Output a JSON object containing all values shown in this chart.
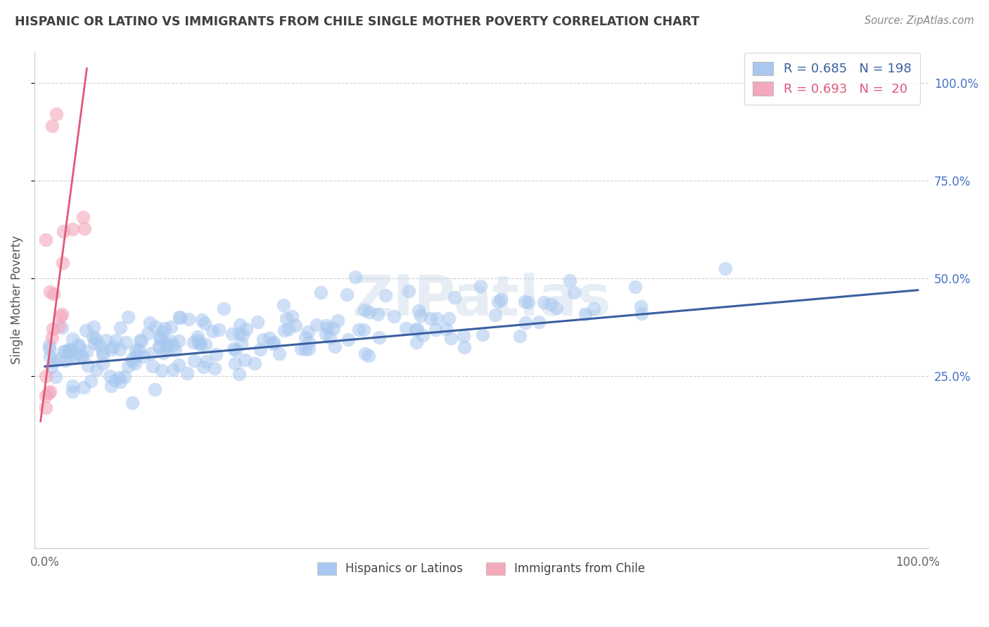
{
  "title": "HISPANIC OR LATINO VS IMMIGRANTS FROM CHILE SINGLE MOTHER POVERTY CORRELATION CHART",
  "source": "Source: ZipAtlas.com",
  "ylabel": "Single Mother Poverty",
  "x_tick_labels": [
    "0.0%",
    "",
    "",
    "",
    "100.0%"
  ],
  "y_tick_positions_right": [
    0.25,
    0.5,
    0.75,
    1.0
  ],
  "y_tick_labels_right": [
    "25.0%",
    "50.0%",
    "75.0%",
    "100.0%"
  ],
  "blue_R": 0.685,
  "blue_N": 198,
  "pink_R": 0.693,
  "pink_N": 20,
  "blue_color": "#A8C8F0",
  "pink_color": "#F4A8BC",
  "blue_line_color": "#3A5FA0",
  "pink_line_color": "#E05878",
  "legend_label_blue": "Hispanics or Latinos",
  "legend_label_pink": "Immigrants from Chile",
  "watermark_text": "ZIPatlas",
  "background_color": "#FFFFFF",
  "grid_color": "#CCCCCC",
  "title_color": "#404040",
  "axis_label_color": "#555555",
  "source_color": "#888888",
  "right_tick_color": "#4472C4"
}
